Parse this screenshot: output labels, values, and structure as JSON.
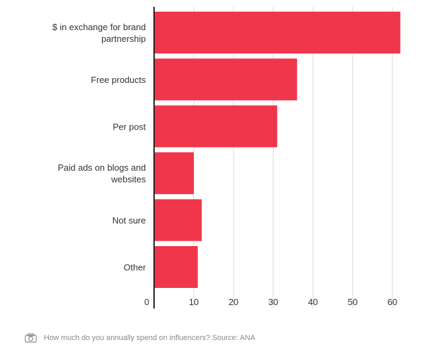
{
  "chart_data": {
    "type": "bar",
    "orientation": "horizontal",
    "categories": [
      [
        "$ in exchange for brand",
        "partnership"
      ],
      [
        "Free products"
      ],
      [
        "Per post"
      ],
      [
        "Paid ads on blogs and",
        "websites"
      ],
      [
        "Not sure"
      ],
      [
        "Other"
      ]
    ],
    "values": [
      62,
      36,
      31,
      10,
      12,
      11
    ],
    "xlim": [
      0,
      63
    ],
    "xticks": [
      0,
      10,
      20,
      30,
      40,
      50,
      60
    ],
    "grid": true,
    "bar_color": "#f0364a",
    "grid_color": "#d9d9d9",
    "axis_color": "#222222"
  },
  "caption": {
    "icon": "camera-icon",
    "text": "How much do you annually spend on influencers? Source: ANA"
  }
}
